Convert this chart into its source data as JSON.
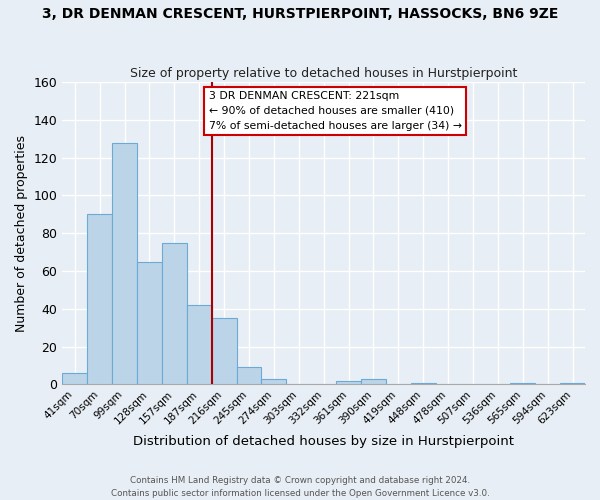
{
  "title": "3, DR DENMAN CRESCENT, HURSTPIERPOINT, HASSOCKS, BN6 9ZE",
  "subtitle": "Size of property relative to detached houses in Hurstpierpoint",
  "xlabel": "Distribution of detached houses by size in Hurstpierpoint",
  "ylabel": "Number of detached properties",
  "bin_labels": [
    "41sqm",
    "70sqm",
    "99sqm",
    "128sqm",
    "157sqm",
    "187sqm",
    "216sqm",
    "245sqm",
    "274sqm",
    "303sqm",
    "332sqm",
    "361sqm",
    "390sqm",
    "419sqm",
    "448sqm",
    "478sqm",
    "507sqm",
    "536sqm",
    "565sqm",
    "594sqm",
    "623sqm"
  ],
  "bar_heights": [
    6,
    90,
    128,
    65,
    75,
    42,
    35,
    9,
    3,
    0,
    0,
    2,
    3,
    0,
    1,
    0,
    0,
    0,
    1,
    0,
    1
  ],
  "bar_color": "#bcd4e8",
  "bar_edge_color": "#6aaad4",
  "vline_color": "#aa0000",
  "ylim": [
    0,
    160
  ],
  "yticks": [
    0,
    20,
    40,
    60,
    80,
    100,
    120,
    140,
    160
  ],
  "annotation_title": "3 DR DENMAN CRESCENT: 221sqm",
  "annotation_line1": "← 90% of detached houses are smaller (410)",
  "annotation_line2": "7% of semi-detached houses are larger (34) →",
  "annotation_box_facecolor": "#ffffff",
  "annotation_box_edgecolor": "#cc0000",
  "footer_line1": "Contains HM Land Registry data © Crown copyright and database right 2024.",
  "footer_line2": "Contains public sector information licensed under the Open Government Licence v3.0.",
  "background_color": "#e8eef5",
  "grid_color": "#ffffff",
  "grid_line_color": "#c8d4e0"
}
